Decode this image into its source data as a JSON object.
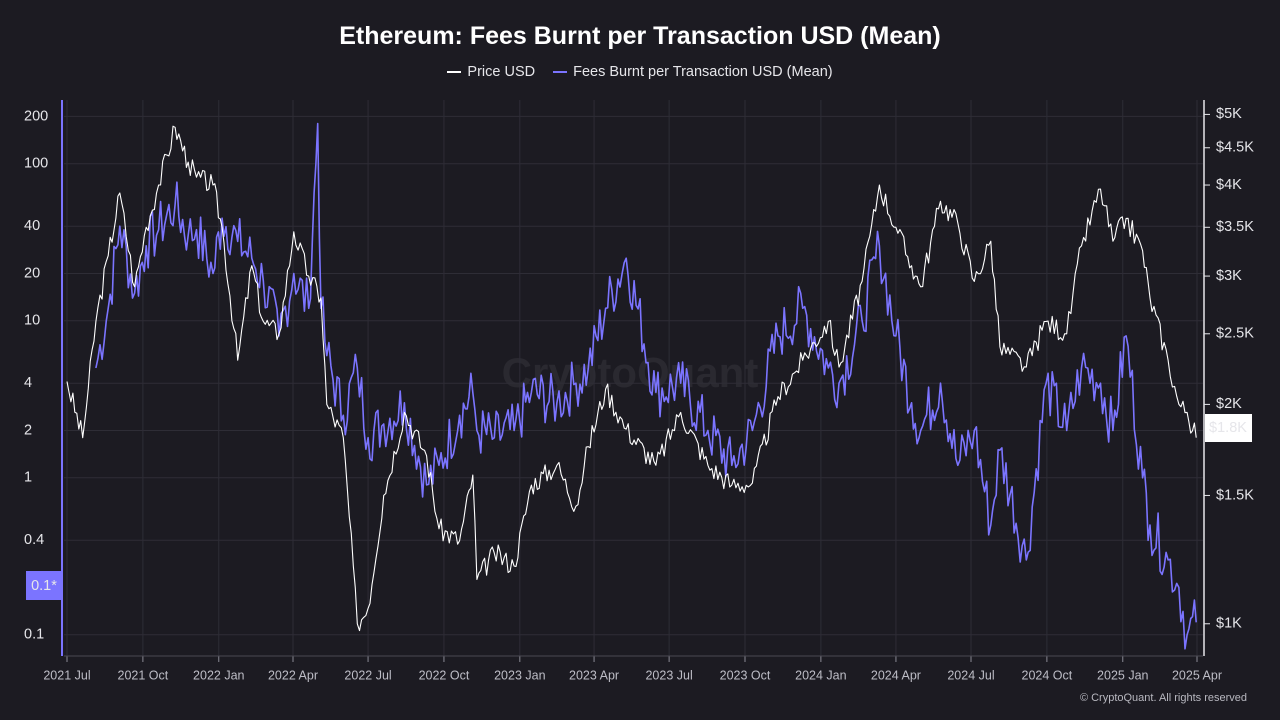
{
  "colors": {
    "background": "#1c1b22",
    "price": "#ffffff",
    "fees": "#7b74ff",
    "grid": "#2e2d36"
  },
  "chart_data": {
    "type": "line",
    "title": "Ethereum: Fees Burnt per Transaction USD (Mean)",
    "legend": [
      "Price USD",
      "Fees Burnt per Transaction USD (Mean)"
    ],
    "legend_position": "top-center",
    "grid": true,
    "watermark": "CryptoQuant",
    "copyright": "© CryptoQuant. All rights reserved",
    "x_axis": {
      "range": [
        "2021-07-01",
        "2025-04-01"
      ],
      "ticks": [
        "2021 Jul",
        "2021 Oct",
        "2022 Jan",
        "2022 Apr",
        "2022 Jul",
        "2022 Oct",
        "2023 Jan",
        "2023 Apr",
        "2023 Jul",
        "2023 Oct",
        "2024 Jan",
        "2024 Apr",
        "2024 Jul",
        "2024 Oct",
        "2025 Jan",
        "2025 Apr"
      ]
    },
    "left_axis": {
      "scale": "log",
      "ticks": [
        "200",
        "100",
        "40",
        "20",
        "10",
        "4",
        "2",
        "1",
        "0.4",
        "0.1"
      ],
      "current_value_label": "0.1*"
    },
    "right_axis": {
      "scale": "log",
      "ticks": [
        "$5K",
        "$4.5K",
        "$4K",
        "$3.5K",
        "$3K",
        "$2.5K",
        "$2K",
        "$1.5K",
        "$1K"
      ],
      "current_value_label": "$1.8K"
    },
    "series": [
      {
        "name": "Price USD",
        "axis": "right",
        "points": [
          [
            "2021-07-01",
            2150
          ],
          [
            "2021-07-20",
            1800
          ],
          [
            "2021-08-05",
            2600
          ],
          [
            "2021-08-20",
            3200
          ],
          [
            "2021-09-03",
            3900
          ],
          [
            "2021-09-21",
            2900
          ],
          [
            "2021-10-05",
            3500
          ],
          [
            "2021-10-20",
            4000
          ],
          [
            "2021-11-09",
            4800
          ],
          [
            "2021-11-25",
            4300
          ],
          [
            "2021-12-05",
            4100
          ],
          [
            "2021-12-25",
            4000
          ],
          [
            "2022-01-05",
            3500
          ],
          [
            "2022-01-24",
            2300
          ],
          [
            "2022-02-10",
            3100
          ],
          [
            "2022-02-24",
            2600
          ],
          [
            "2022-03-15",
            2500
          ],
          [
            "2022-04-02",
            3450
          ],
          [
            "2022-04-20",
            3000
          ],
          [
            "2022-05-05",
            2800
          ],
          [
            "2022-05-12",
            2000
          ],
          [
            "2022-06-01",
            1800
          ],
          [
            "2022-06-18",
            1000
          ],
          [
            "2022-07-01",
            1050
          ],
          [
            "2022-07-20",
            1500
          ],
          [
            "2022-08-14",
            1950
          ],
          [
            "2022-09-10",
            1700
          ],
          [
            "2022-09-25",
            1350
          ],
          [
            "2022-10-20",
            1300
          ],
          [
            "2022-11-05",
            1600
          ],
          [
            "2022-11-10",
            1150
          ],
          [
            "2022-12-01",
            1250
          ],
          [
            "2022-12-25",
            1200
          ],
          [
            "2023-01-15",
            1550
          ],
          [
            "2023-02-15",
            1650
          ],
          [
            "2023-03-10",
            1450
          ],
          [
            "2023-03-25",
            1750
          ],
          [
            "2023-04-15",
            2100
          ],
          [
            "2023-05-10",
            1850
          ],
          [
            "2023-06-15",
            1650
          ],
          [
            "2023-07-15",
            1950
          ],
          [
            "2023-08-17",
            1650
          ],
          [
            "2023-09-15",
            1550
          ],
          [
            "2023-10-10",
            1560
          ],
          [
            "2023-11-10",
            2050
          ],
          [
            "2023-12-10",
            2300
          ],
          [
            "2024-01-10",
            2600
          ],
          [
            "2024-01-23",
            2250
          ],
          [
            "2024-02-20",
            2950
          ],
          [
            "2024-03-12",
            4000
          ],
          [
            "2024-04-01",
            3500
          ],
          [
            "2024-04-20",
            3100
          ],
          [
            "2024-05-01",
            2900
          ],
          [
            "2024-05-25",
            3800
          ],
          [
            "2024-06-15",
            3550
          ],
          [
            "2024-07-05",
            2950
          ],
          [
            "2024-07-25",
            3350
          ],
          [
            "2024-08-05",
            2400
          ],
          [
            "2024-09-06",
            2250
          ],
          [
            "2024-09-30",
            2600
          ],
          [
            "2024-10-25",
            2500
          ],
          [
            "2024-11-12",
            3300
          ],
          [
            "2024-12-05",
            3950
          ],
          [
            "2024-12-20",
            3350
          ],
          [
            "2025-01-05",
            3600
          ],
          [
            "2025-01-25",
            3250
          ],
          [
            "2025-02-03",
            2800
          ],
          [
            "2025-02-25",
            2300
          ],
          [
            "2025-03-10",
            2000
          ],
          [
            "2025-03-20",
            1950
          ],
          [
            "2025-03-31",
            1800
          ]
        ]
      },
      {
        "name": "Fees Burnt per Transaction USD (Mean)",
        "axis": "left",
        "points": [
          [
            "2021-08-05",
            5
          ],
          [
            "2021-08-20",
            12
          ],
          [
            "2021-09-03",
            40
          ],
          [
            "2021-09-21",
            15
          ],
          [
            "2021-10-05",
            30
          ],
          [
            "2021-10-20",
            38
          ],
          [
            "2021-11-09",
            55
          ],
          [
            "2021-11-25",
            35
          ],
          [
            "2021-12-05",
            38
          ],
          [
            "2021-12-25",
            20
          ],
          [
            "2022-01-05",
            45
          ],
          [
            "2022-01-24",
            32
          ],
          [
            "2022-02-10",
            25
          ],
          [
            "2022-02-24",
            18
          ],
          [
            "2022-03-15",
            8
          ],
          [
            "2022-04-02",
            20
          ],
          [
            "2022-04-20",
            12
          ],
          [
            "2022-05-01",
            180
          ],
          [
            "2022-05-05",
            12
          ],
          [
            "2022-05-12",
            6
          ],
          [
            "2022-06-01",
            2.5
          ],
          [
            "2022-06-18",
            5
          ],
          [
            "2022-07-01",
            1.8
          ],
          [
            "2022-07-20",
            2.2
          ],
          [
            "2022-08-14",
            3
          ],
          [
            "2022-09-10",
            0.9
          ],
          [
            "2022-09-25",
            1.2
          ],
          [
            "2022-10-20",
            2.5
          ],
          [
            "2022-11-05",
            3.5
          ],
          [
            "2022-11-10",
            2
          ],
          [
            "2022-12-01",
            1.8
          ],
          [
            "2022-12-25",
            2
          ],
          [
            "2023-01-15",
            3.5
          ],
          [
            "2023-02-15",
            3
          ],
          [
            "2023-03-10",
            4
          ],
          [
            "2023-03-25",
            5
          ],
          [
            "2023-04-15",
            12
          ],
          [
            "2023-05-10",
            25
          ],
          [
            "2023-06-15",
            3.5
          ],
          [
            "2023-07-15",
            4
          ],
          [
            "2023-08-17",
            2
          ],
          [
            "2023-09-15",
            1.2
          ],
          [
            "2023-10-10",
            2
          ],
          [
            "2023-11-10",
            8
          ],
          [
            "2023-12-10",
            12
          ],
          [
            "2024-01-10",
            5
          ],
          [
            "2024-01-23",
            4
          ],
          [
            "2024-02-20",
            10
          ],
          [
            "2024-03-12",
            30
          ],
          [
            "2024-04-01",
            8
          ],
          [
            "2024-04-20",
            3
          ],
          [
            "2024-05-01",
            2
          ],
          [
            "2024-05-25",
            4
          ],
          [
            "2024-06-15",
            1.2
          ],
          [
            "2024-07-05",
            2
          ],
          [
            "2024-07-25",
            0.5
          ],
          [
            "2024-08-05",
            1.5
          ],
          [
            "2024-09-06",
            0.3
          ],
          [
            "2024-09-30",
            4
          ],
          [
            "2024-10-25",
            2
          ],
          [
            "2024-11-12",
            5
          ],
          [
            "2024-12-05",
            4
          ],
          [
            "2024-12-20",
            2
          ],
          [
            "2025-01-05",
            8
          ],
          [
            "2025-01-25",
            1
          ],
          [
            "2025-02-03",
            0.5
          ],
          [
            "2025-02-25",
            0.3
          ],
          [
            "2025-03-10",
            0.2
          ],
          [
            "2025-03-20",
            0.1
          ],
          [
            "2025-03-31",
            0.12
          ]
        ]
      }
    ]
  }
}
